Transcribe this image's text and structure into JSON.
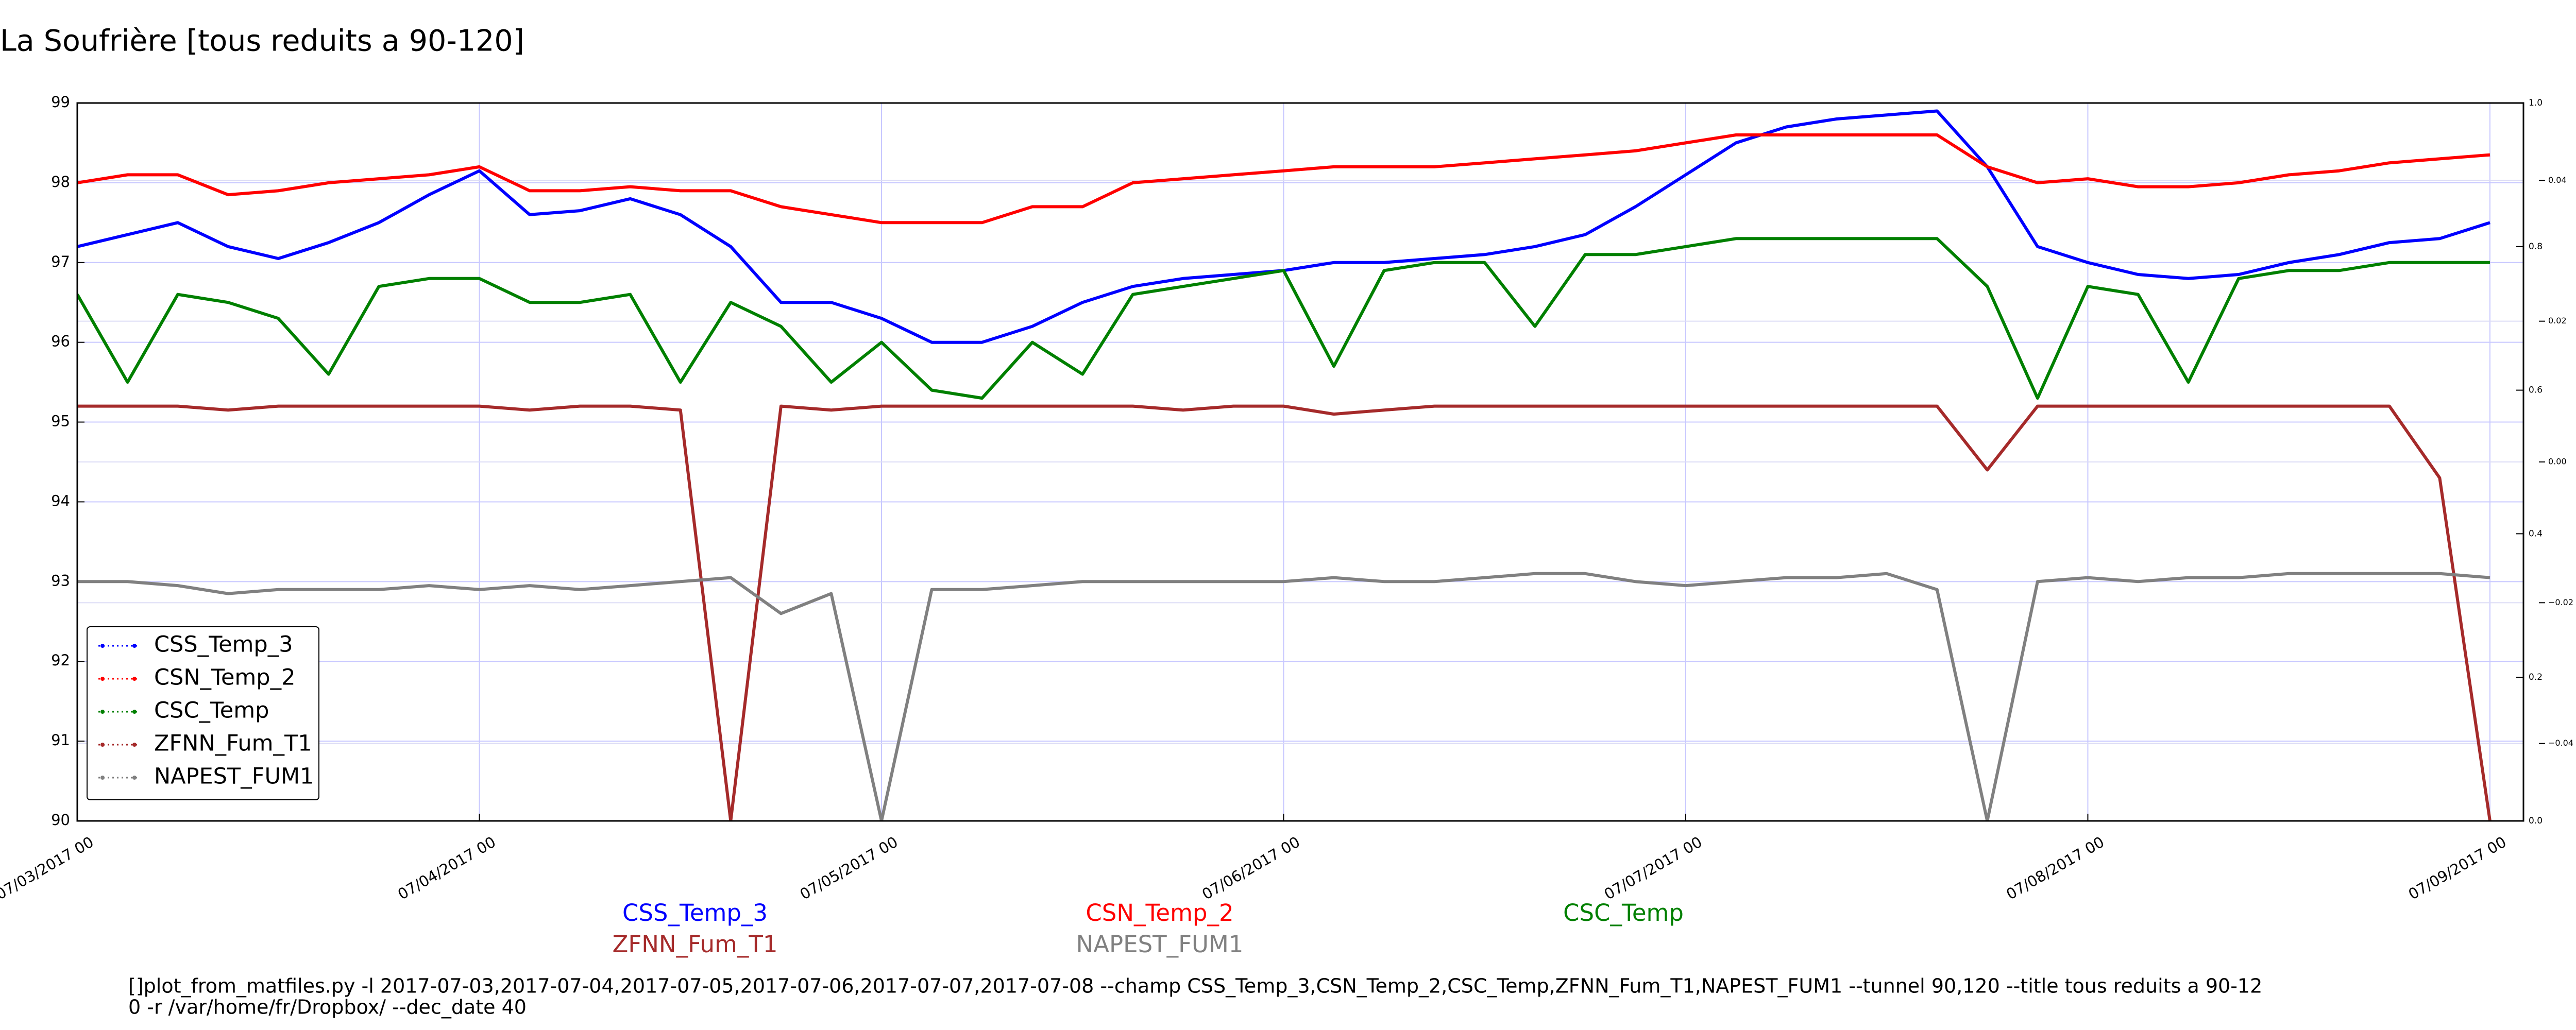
{
  "chart_data": {
    "type": "line",
    "title": "La Soufrière [tous reduits a 90-120]",
    "x": [
      "07/03/2017 00",
      "07/03/2017 03",
      "07/03/2017 06",
      "07/03/2017 09",
      "07/03/2017 12",
      "07/03/2017 15",
      "07/03/2017 18",
      "07/03/2017 21",
      "07/04/2017 00",
      "07/04/2017 03",
      "07/04/2017 06",
      "07/04/2017 09",
      "07/04/2017 12",
      "07/04/2017 15",
      "07/04/2017 18",
      "07/04/2017 21",
      "07/05/2017 00",
      "07/05/2017 03",
      "07/05/2017 06",
      "07/05/2017 09",
      "07/05/2017 12",
      "07/05/2017 15",
      "07/05/2017 18",
      "07/05/2017 21",
      "07/06/2017 00",
      "07/06/2017 03",
      "07/06/2017 06",
      "07/06/2017 09",
      "07/06/2017 12",
      "07/06/2017 15",
      "07/06/2017 18",
      "07/06/2017 21",
      "07/07/2017 00",
      "07/07/2017 03",
      "07/07/2017 06",
      "07/07/2017 09",
      "07/07/2017 12",
      "07/07/2017 15",
      "07/07/2017 18",
      "07/07/2017 21",
      "07/08/2017 00",
      "07/08/2017 03",
      "07/08/2017 06",
      "07/08/2017 09",
      "07/08/2017 12",
      "07/08/2017 15",
      "07/08/2017 18",
      "07/08/2017 21",
      "07/09/2017 00"
    ],
    "series": [
      {
        "name": "CSS_Temp_3",
        "color": "#0000ff",
        "values": [
          97.2,
          97.35,
          97.5,
          97.2,
          97.05,
          97.25,
          97.5,
          97.85,
          98.15,
          97.6,
          97.65,
          97.8,
          97.6,
          97.2,
          96.5,
          96.5,
          96.3,
          96.0,
          96.0,
          96.2,
          96.5,
          96.7,
          96.8,
          96.85,
          96.9,
          97.0,
          97.0,
          97.05,
          97.1,
          97.2,
          97.35,
          97.7,
          98.1,
          98.5,
          98.7,
          98.8,
          98.85,
          98.9,
          98.2,
          97.2,
          97.0,
          96.85,
          96.8,
          96.85,
          97.0,
          97.1,
          97.25,
          97.3,
          97.5
        ]
      },
      {
        "name": "CSN_Temp_2",
        "color": "#ff0000",
        "values": [
          98.0,
          98.1,
          98.1,
          97.85,
          97.9,
          98.0,
          98.05,
          98.1,
          98.2,
          97.9,
          97.9,
          97.95,
          97.9,
          97.9,
          97.7,
          97.6,
          97.5,
          97.5,
          97.5,
          97.7,
          97.7,
          98.0,
          98.05,
          98.1,
          98.15,
          98.2,
          98.2,
          98.2,
          98.25,
          98.3,
          98.35,
          98.4,
          98.5,
          98.6,
          98.6,
          98.6,
          98.6,
          98.6,
          98.2,
          98.0,
          98.05,
          97.95,
          97.95,
          98.0,
          98.1,
          98.15,
          98.25,
          98.3,
          98.35
        ]
      },
      {
        "name": "CSC_Temp",
        "color": "#008000",
        "values": [
          96.6,
          95.5,
          96.6,
          96.5,
          96.3,
          95.6,
          96.7,
          96.8,
          96.8,
          96.5,
          96.5,
          96.6,
          95.5,
          96.5,
          96.2,
          95.5,
          96.0,
          95.4,
          95.3,
          96.0,
          95.6,
          96.6,
          96.7,
          96.8,
          96.9,
          95.7,
          96.9,
          97.0,
          97.0,
          96.2,
          97.1,
          97.1,
          97.2,
          97.3,
          97.3,
          97.3,
          97.3,
          97.3,
          96.7,
          95.3,
          96.7,
          96.6,
          95.5,
          96.8,
          96.9,
          96.9,
          97.0,
          97.0,
          97.0
        ]
      },
      {
        "name": "ZFNN_Fum_T1",
        "color": "#a52a2a",
        "values": [
          95.2,
          95.2,
          95.2,
          95.15,
          95.2,
          95.2,
          95.2,
          95.2,
          95.2,
          95.15,
          95.2,
          95.2,
          95.15,
          90.0,
          95.2,
          95.15,
          95.2,
          95.2,
          95.2,
          95.2,
          95.2,
          95.2,
          95.15,
          95.2,
          95.2,
          95.1,
          95.15,
          95.2,
          95.2,
          95.2,
          95.2,
          95.2,
          95.2,
          95.2,
          95.2,
          95.2,
          95.2,
          95.2,
          94.4,
          95.2,
          95.2,
          95.2,
          95.2,
          95.2,
          95.2,
          95.2,
          95.2,
          94.3,
          90.0
        ]
      },
      {
        "name": "NAPEST_FUM1",
        "color": "#808080",
        "values": [
          93.0,
          93.0,
          92.95,
          92.85,
          92.9,
          92.9,
          92.9,
          92.95,
          92.9,
          92.95,
          92.9,
          92.95,
          93.0,
          93.05,
          92.6,
          92.85,
          90.0,
          92.9,
          92.9,
          92.95,
          93.0,
          93.0,
          93.0,
          93.0,
          93.0,
          93.05,
          93.0,
          93.0,
          93.05,
          93.1,
          93.1,
          93.0,
          92.95,
          93.0,
          93.05,
          93.05,
          93.1,
          92.9,
          90.0,
          93.0,
          93.05,
          93.0,
          93.05,
          93.05,
          93.1,
          93.1,
          93.1,
          93.1,
          93.05
        ]
      }
    ],
    "xlim": [
      "07/03/2017 00",
      "07/09/2017 02"
    ],
    "xticks": [
      "07/03/2017 00",
      "07/04/2017 00",
      "07/05/2017 00",
      "07/06/2017 00",
      "07/07/2017 00",
      "07/08/2017 00",
      "07/09/2017 00"
    ],
    "ylim": [
      90,
      99
    ],
    "yticks": [
      90,
      91,
      92,
      93,
      94,
      95,
      96,
      97,
      98,
      99
    ],
    "y2lim": [
      0,
      1
    ],
    "y2ticks": [
      {
        "value": 0,
        "label": "0.0"
      },
      {
        "value": 0.2,
        "label": "0.2"
      },
      {
        "value": 0.4,
        "label": "0.4"
      },
      {
        "value": 0.6,
        "label": "0.6"
      },
      {
        "value": 0.8,
        "label": "0.8"
      },
      {
        "value": 1,
        "label": "1.0"
      }
    ],
    "y3lim": [
      -0.051,
      0.051
    ],
    "y3ticks": [
      {
        "value": -0.04,
        "label": "−0.04"
      },
      {
        "value": -0.02,
        "label": "−0.02"
      },
      {
        "value": 0,
        "label": "0.00"
      },
      {
        "value": 0.02,
        "label": "0.02"
      },
      {
        "value": 0.04,
        "label": "0.04"
      }
    ],
    "grid": true,
    "legend": "lower left",
    "footer": [
      "[]plot_from_matfiles.py -l 2017-07-03,2017-07-04,2017-07-05,2017-07-06,2017-07-07,2017-07-08 --champ CSS_Temp_3,CSN_Temp_2,CSC_Temp,ZFNN_Fum_T1,NAPEST_FUM1 --tunnel 90,120 --title tous reduits a 90-12",
      "0 -r /var/home/fr/Dropbox/ --dec_date 40"
    ]
  }
}
